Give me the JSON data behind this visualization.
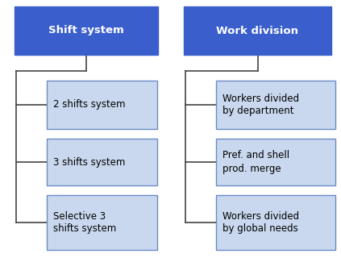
{
  "fig_width": 4.23,
  "fig_height": 3.25,
  "dpi": 100,
  "bg_color": "#ffffff",
  "header_bg": "#3A5FCD",
  "header_text_color": "#ffffff",
  "child_bg": "#C9D8EE",
  "child_border": "#6B8CC7",
  "child_text_color": "#000000",
  "line_color": "#444444",
  "left_header": "Shift system",
  "right_header": "Work division",
  "left_items": [
    "2 shifts system",
    "3 shifts system",
    "Selective 3\nshifts system"
  ],
  "right_items": [
    "Workers divided\nby department",
    "Pref. and shell\nprod. merge",
    "Workers divided\nby global needs"
  ],
  "header_fontsize": 9.5,
  "child_fontsize": 8.5
}
